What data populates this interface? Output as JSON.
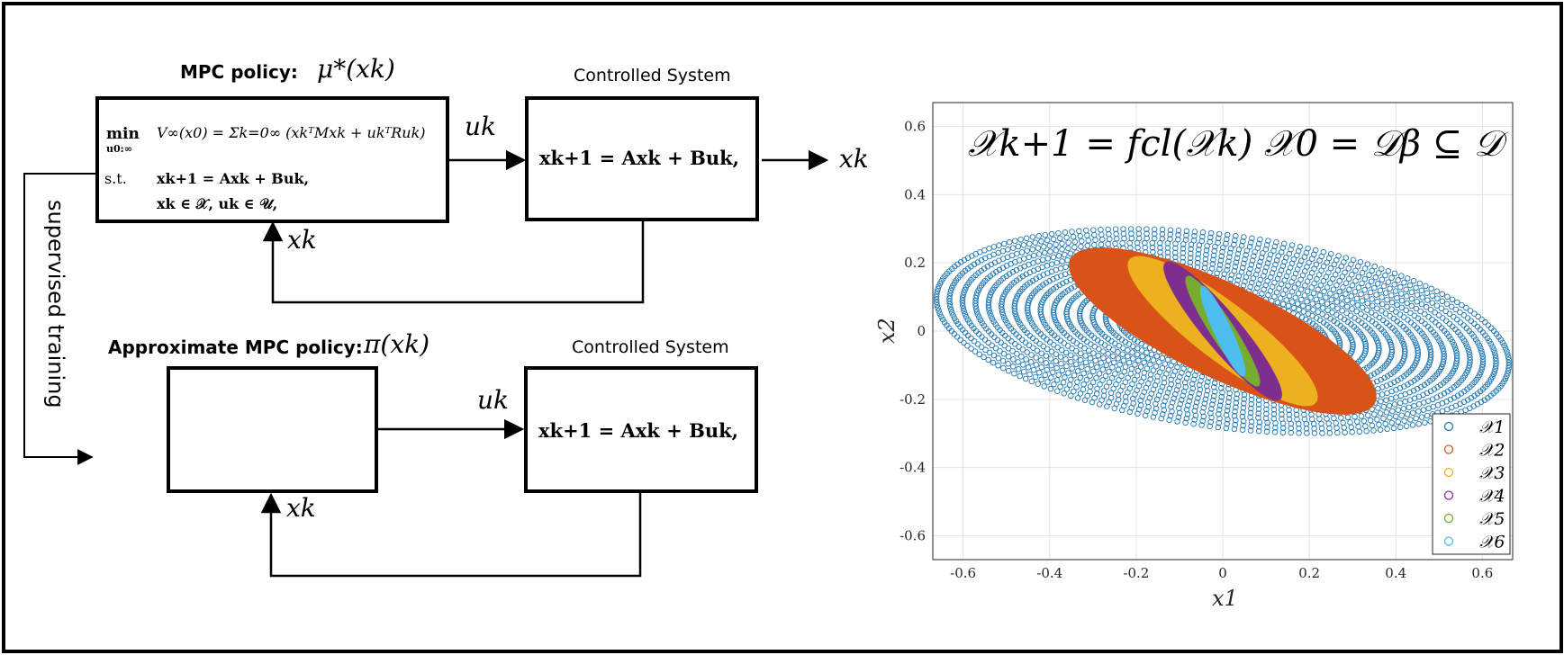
{
  "top_policy": {
    "title": "MPC policy:",
    "symbol": "μ*(xk)",
    "objective_min": "min",
    "objective_sub": "u0:∞",
    "objective": "V∞(x0) = Σk=0∞ (xkᵀMxk + ukᵀRuk)",
    "constraint_label": "s.t.",
    "constraint_dynamics": "xk+1 = Axk + Buk,",
    "constraint_sets": "xk ∈ 𝒳,   uk ∈ 𝒰,"
  },
  "top_system": {
    "title": "Controlled System",
    "equation": "xk+1 = Axk + Buk,"
  },
  "bottom_policy": {
    "title": "Approximate MPC policy:",
    "symbol": "π(xk)"
  },
  "bottom_system": {
    "title": "Controlled System",
    "equation": "xk+1 = Axk + Buk,"
  },
  "signals": {
    "control_top": "uk",
    "output_top": "xk",
    "feedback_top": "xk",
    "control_bottom": "uk",
    "feedback_bottom": "xk"
  },
  "side_label": "supervised training",
  "plot": {
    "annotation": "𝒳k+1 = fcl(𝒳k)    𝒳0 = 𝒟β ⊆ 𝒟",
    "xlabel": "x1",
    "ylabel": "x2",
    "x_ticks": [
      "-0.6",
      "-0.4",
      "-0.2",
      "0",
      "0.2",
      "0.4",
      "0.6"
    ],
    "y_ticks": [
      "0.6",
      "0.4",
      "0.2",
      "0",
      "-0.2",
      "-0.4",
      "-0.6"
    ],
    "xlim": [
      -0.67,
      0.67
    ],
    "ylim": [
      -0.67,
      0.67
    ],
    "grid": true,
    "legend_position": "bottom-right",
    "sets": [
      {
        "name": "𝒳1",
        "color": "#1f77b4",
        "center": [
          0,
          0
        ],
        "a": 0.67,
        "b": 0.28,
        "angle_deg": -10,
        "style": "markers"
      },
      {
        "name": "𝒳2",
        "color": "#d95319",
        "center": [
          0,
          0
        ],
        "a": 0.41,
        "b": 0.13,
        "angle_deg": -32,
        "style": "fill"
      },
      {
        "name": "𝒳3",
        "color": "#edb120",
        "center": [
          0,
          0
        ],
        "a": 0.3,
        "b": 0.075,
        "angle_deg": -45,
        "style": "fill"
      },
      {
        "name": "𝒳4",
        "color": "#7e2f8e",
        "center": [
          0,
          0
        ],
        "a": 0.24,
        "b": 0.045,
        "angle_deg": -57,
        "style": "fill"
      },
      {
        "name": "𝒳5",
        "color": "#77ac30",
        "center": [
          0,
          0
        ],
        "a": 0.18,
        "b": 0.028,
        "angle_deg": -63,
        "style": "fill"
      },
      {
        "name": "𝒳6",
        "color": "#4dbeee",
        "center": [
          0,
          0
        ],
        "a": 0.14,
        "b": 0.02,
        "angle_deg": -70,
        "style": "fill"
      }
    ]
  }
}
